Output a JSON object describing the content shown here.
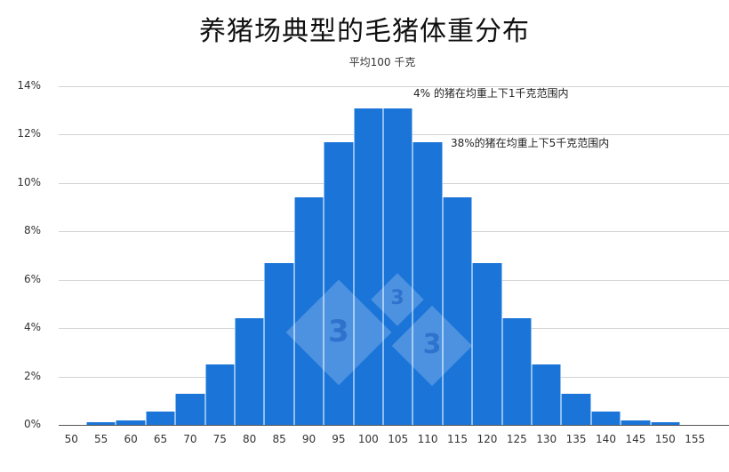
{
  "chart_data": {
    "type": "bar",
    "title": "养猪场典型的毛猪体重分布",
    "subtitle": "平均100 千克",
    "xlabel": "",
    "ylabel": "",
    "categories": [
      "50",
      "55",
      "60",
      "65",
      "70",
      "75",
      "80",
      "85",
      "90",
      "95",
      "100",
      "105",
      "110",
      "115",
      "120",
      "125",
      "130",
      "135",
      "140",
      "145",
      "150",
      "155"
    ],
    "values": [
      0,
      0.1,
      0.2,
      0.55,
      1.3,
      2.5,
      4.4,
      6.7,
      9.4,
      11.7,
      13.1,
      13.1,
      11.7,
      9.4,
      6.7,
      4.4,
      2.5,
      1.3,
      0.55,
      0.2,
      0.1,
      0
    ],
    "value_unit": "%",
    "ylim": [
      0,
      14
    ],
    "yticks": [
      "0%",
      "2%",
      "4%",
      "6%",
      "8%",
      "10%",
      "12%",
      "14%"
    ],
    "grid": true,
    "legend": null,
    "annotations": [
      {
        "text": "4% 的猪在均重上下1千克范围内",
        "near": "100-105"
      },
      {
        "text": "38%的猪在均重上下5千克范围内",
        "near": "110"
      }
    ],
    "colors": {
      "bar": "#1b74d8",
      "grid": "#d4d4d4"
    }
  },
  "watermark": {
    "glyph": "3",
    "count": 3
  }
}
